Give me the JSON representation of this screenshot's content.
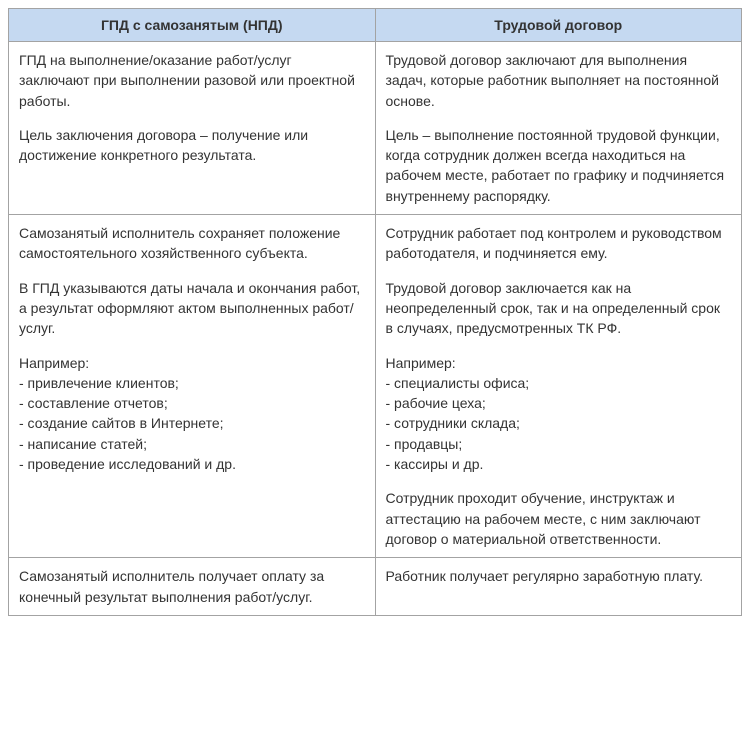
{
  "table": {
    "header_bg": "#c5d9f1",
    "border_color": "#a3a3a3",
    "text_color": "#333333",
    "font_size": 14,
    "columns": [
      {
        "label": "ГПД с самозанятым (НПД)"
      },
      {
        "label": "Трудовой договор"
      }
    ],
    "rows": [
      {
        "left": [
          "ГПД на выполнение/оказание работ/услуг заключают при выполнении разовой или проектной работы.",
          "Цель заключения договора – получение или достижение конкретного результата."
        ],
        "right": [
          "Трудовой договор заключают для выполнения задач, которые работник выполняет на постоянной основе.",
          "Цель – выполнение постоянной трудовой функции, когда сотрудник должен всегда находиться на рабочем месте, работает по графику и подчиняется внутреннему распорядку."
        ]
      },
      {
        "left": [
          "Самозанятый исполнитель сохраняет положение самостоятельного хозяйственного субъекта.",
          "В ГПД указываются даты начала и окончания работ, а результат оформляют актом выполненных работ/услуг.",
          "Например:\n- привлечение клиентов;\n- составление отчетов;\n- создание сайтов в Интернете;\n- написание статей;\n- проведение исследований и др."
        ],
        "right": [
          "Сотрудник работает под контролем и руководством работодателя, и подчиняется ему.",
          "Трудовой договор заключается как на неопределенный срок, так и на определенный срок в случаях, предусмотренных ТК РФ.",
          "Например:\n- специалисты офиса;\n- рабочие цеха;\n- сотрудники склада;\n- продавцы;\n- кассиры и др.",
          "Сотрудник проходит обучение, инструктаж и аттестацию на рабочем месте, с ним заключают договор о материальной ответственности."
        ]
      },
      {
        "left": [
          "Самозанятый исполнитель получает оплату за конечный результат выполнения работ/услуг."
        ],
        "right": [
          "Работник получает регулярно заработную плату."
        ]
      }
    ]
  }
}
